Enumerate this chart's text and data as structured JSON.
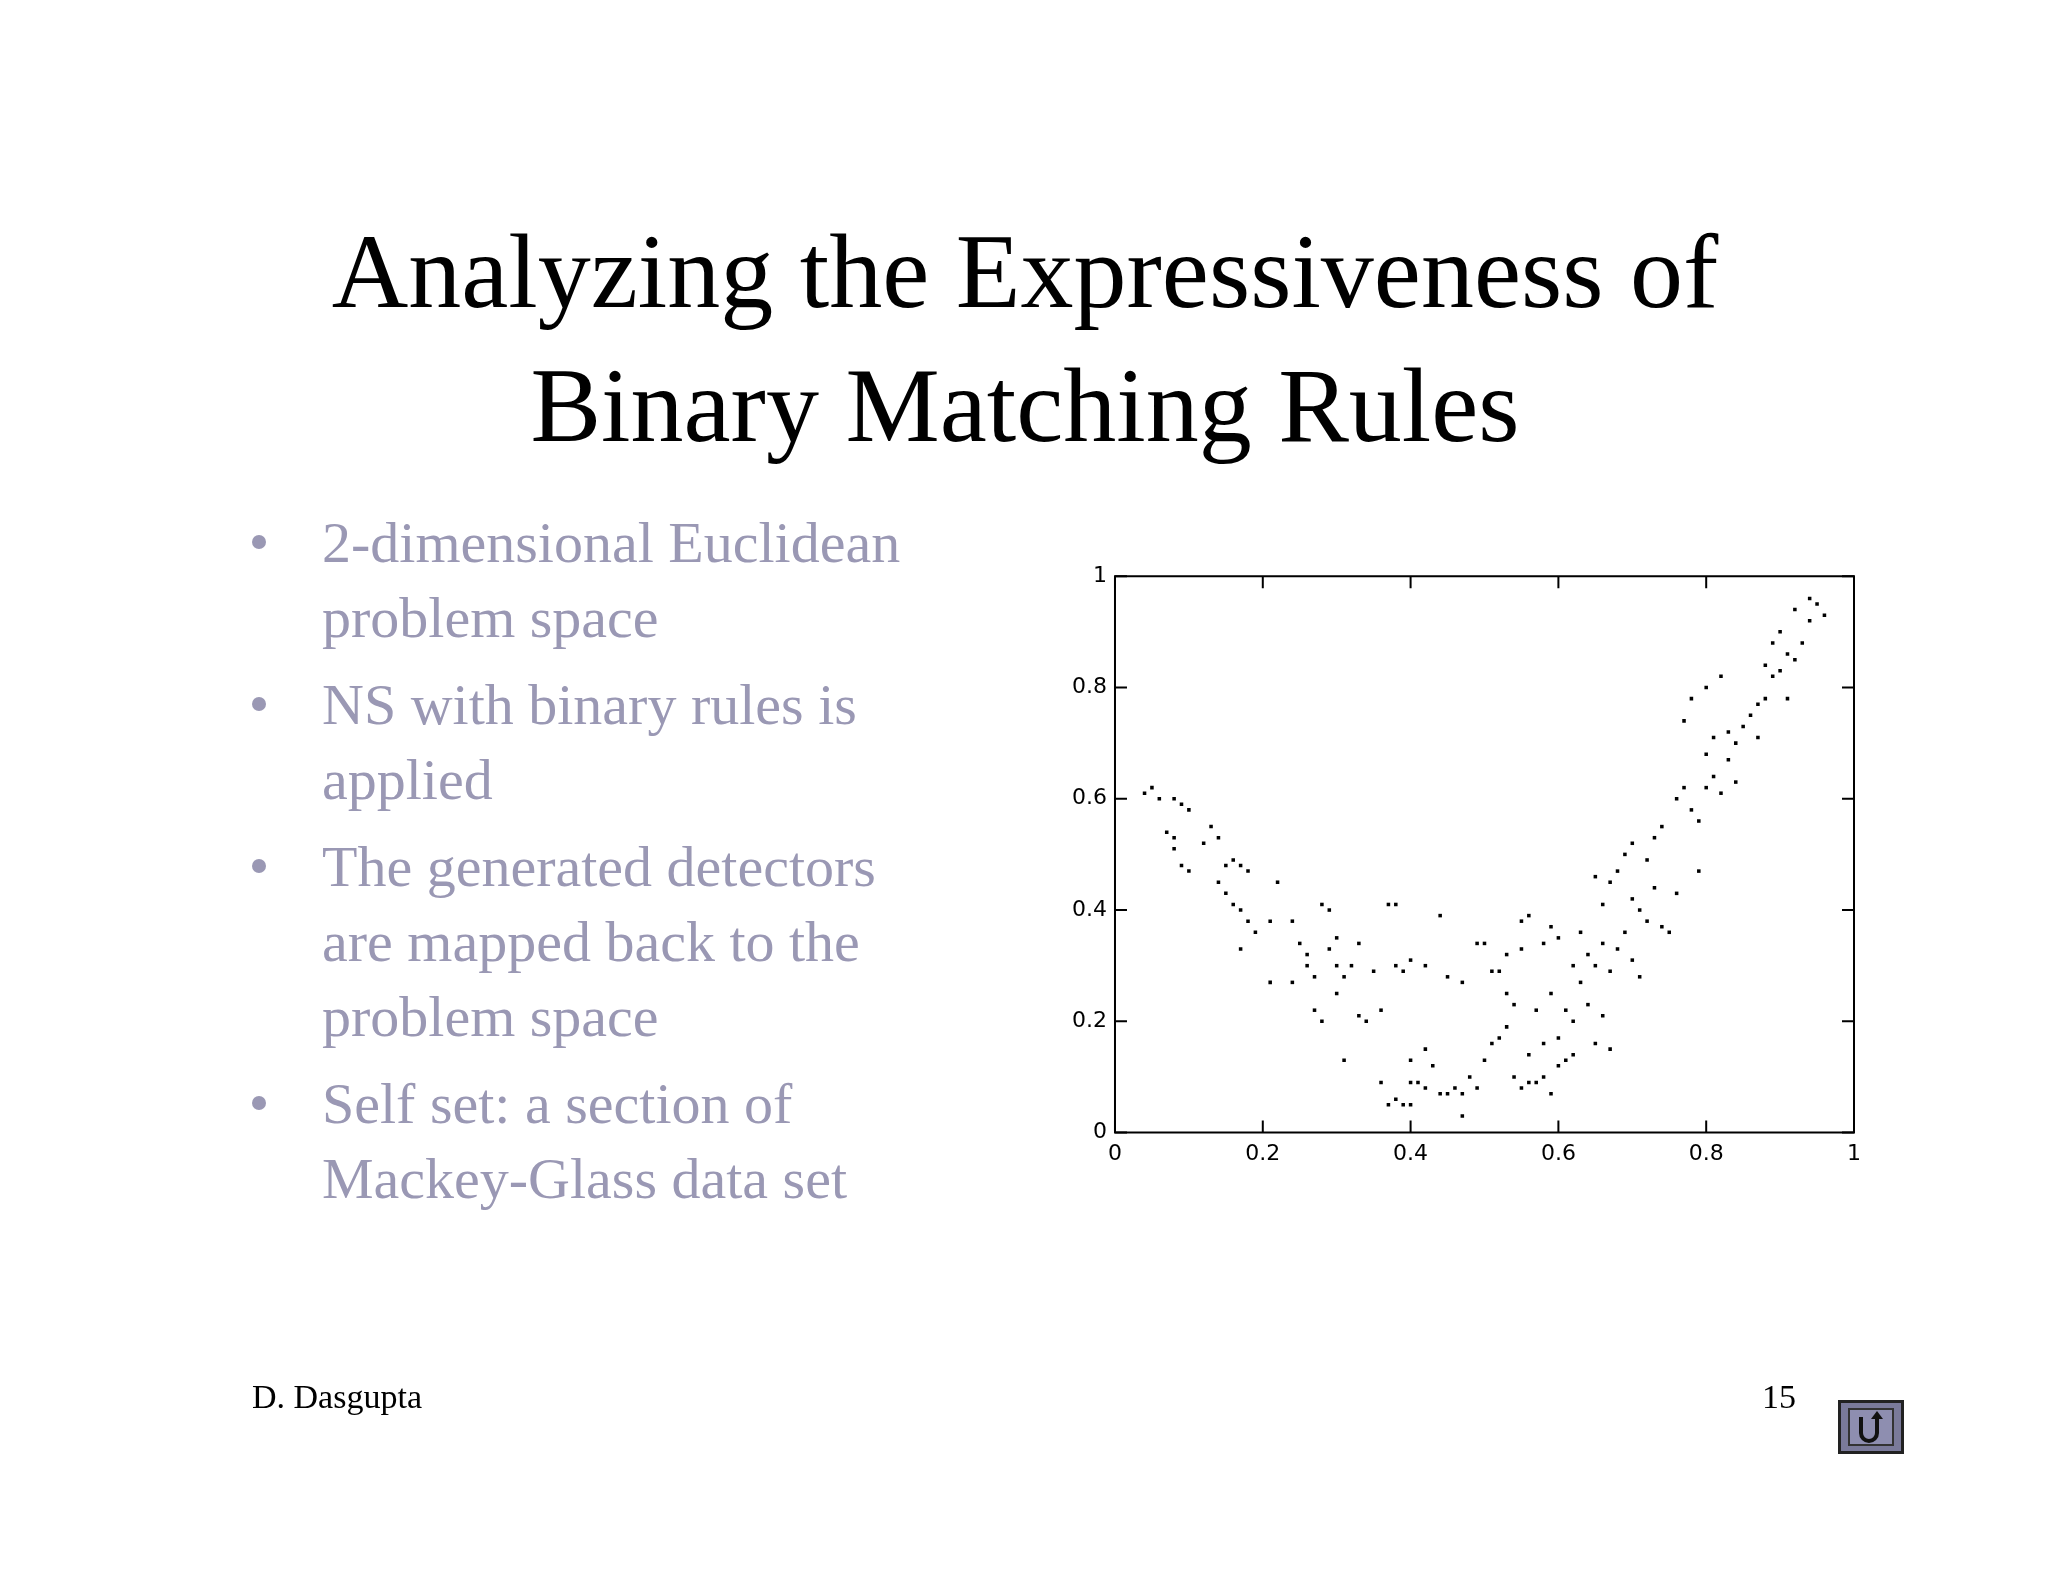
{
  "chart_data": {
    "type": "scatter",
    "title": "Analyzing the Expressiveness of Binary Matching Rules",
    "annotations": [
      "2-dimensional Euclidean problem space",
      "NS with binary rules is applied",
      "The generated detectors are mapped back to the problem space",
      "Self set: a section of Mackey-Glass data set",
      "D. Dasgupta",
      "15"
    ],
    "xlim": [
      0,
      1
    ],
    "ylim": [
      0,
      1
    ],
    "xticks": [
      0,
      0.2,
      0.4,
      0.6,
      0.8,
      1
    ],
    "yticks": [
      0,
      0.2,
      0.4,
      0.6,
      0.8,
      1
    ],
    "marker": "square",
    "series": [
      {
        "color": "#000000",
        "x": [
          0.04,
          0.05,
          0.06,
          0.08,
          0.09,
          0.1,
          0.07,
          0.08,
          0.08,
          0.09,
          0.1,
          0.12,
          0.13,
          0.14,
          0.15,
          0.16,
          0.17,
          0.18,
          0.14,
          0.15,
          0.16,
          0.17,
          0.18,
          0.19,
          0.21,
          0.22,
          0.24,
          0.17,
          0.21,
          0.24,
          0.25,
          0.26,
          0.26,
          0.27,
          0.27,
          0.28,
          0.28,
          0.29,
          0.29,
          0.3,
          0.3,
          0.3,
          0.31,
          0.31,
          0.32,
          0.33,
          0.34,
          0.33,
          0.35,
          0.36,
          0.37,
          0.38,
          0.38,
          0.39,
          0.4,
          0.42,
          0.44,
          0.45,
          0.47,
          0.49,
          0.5,
          0.51,
          0.52,
          0.53,
          0.55,
          0.53,
          0.54,
          0.36,
          0.37,
          0.38,
          0.39,
          0.4,
          0.4,
          0.4,
          0.41,
          0.42,
          0.42,
          0.43,
          0.44,
          0.45,
          0.46,
          0.47,
          0.47,
          0.48,
          0.49,
          0.5,
          0.51,
          0.52,
          0.53,
          0.54,
          0.55,
          0.56,
          0.57,
          0.58,
          0.59,
          0.6,
          0.61,
          0.62,
          0.6,
          0.58,
          0.56,
          0.57,
          0.59,
          0.61,
          0.62,
          0.63,
          0.64,
          0.65,
          0.66,
          0.67,
          0.55,
          0.56,
          0.58,
          0.59,
          0.6,
          0.62,
          0.63,
          0.64,
          0.65,
          0.66,
          0.67,
          0.68,
          0.69,
          0.7,
          0.71,
          0.71,
          0.7,
          0.68,
          0.67,
          0.66,
          0.65,
          0.69,
          0.7,
          0.72,
          0.73,
          0.72,
          0.74,
          0.75,
          0.76,
          0.73,
          0.74,
          0.76,
          0.77,
          0.78,
          0.79,
          0.8,
          0.81,
          0.82,
          0.8,
          0.81,
          0.83,
          0.84,
          0.85,
          0.86,
          0.84,
          0.79,
          0.77,
          0.78,
          0.8,
          0.82,
          0.83,
          0.87,
          0.88,
          0.89,
          0.9,
          0.91,
          0.92,
          0.93,
          0.94,
          0.95,
          0.96,
          0.94,
          0.92,
          0.9,
          0.89,
          0.91,
          0.87,
          0.88
        ],
        "values": [
          0.61,
          0.62,
          0.6,
          0.6,
          0.59,
          0.58,
          0.54,
          0.53,
          0.51,
          0.48,
          0.47,
          0.52,
          0.55,
          0.53,
          0.48,
          0.49,
          0.48,
          0.47,
          0.45,
          0.43,
          0.41,
          0.4,
          0.38,
          0.36,
          0.38,
          0.45,
          0.38,
          0.33,
          0.27,
          0.27,
          0.34,
          0.32,
          0.3,
          0.28,
          0.22,
          0.2,
          0.41,
          0.4,
          0.33,
          0.35,
          0.25,
          0.3,
          0.28,
          0.13,
          0.3,
          0.21,
          0.2,
          0.34,
          0.29,
          0.22,
          0.41,
          0.41,
          0.3,
          0.29,
          0.31,
          0.3,
          0.39,
          0.28,
          0.27,
          0.34,
          0.34,
          0.29,
          0.29,
          0.32,
          0.33,
          0.25,
          0.23,
          0.09,
          0.05,
          0.06,
          0.05,
          0.05,
          0.09,
          0.13,
          0.09,
          0.15,
          0.08,
          0.12,
          0.07,
          0.07,
          0.08,
          0.03,
          0.07,
          0.1,
          0.08,
          0.13,
          0.16,
          0.17,
          0.19,
          0.1,
          0.08,
          0.09,
          0.09,
          0.1,
          0.07,
          0.12,
          0.13,
          0.14,
          0.17,
          0.16,
          0.14,
          0.22,
          0.25,
          0.22,
          0.2,
          0.27,
          0.23,
          0.16,
          0.21,
          0.15,
          0.38,
          0.39,
          0.34,
          0.37,
          0.35,
          0.3,
          0.36,
          0.32,
          0.3,
          0.34,
          0.29,
          0.33,
          0.36,
          0.31,
          0.28,
          0.4,
          0.42,
          0.47,
          0.45,
          0.41,
          0.46,
          0.5,
          0.52,
          0.49,
          0.44,
          0.38,
          0.37,
          0.36,
          0.43,
          0.53,
          0.55,
          0.6,
          0.62,
          0.58,
          0.56,
          0.62,
          0.64,
          0.61,
          0.68,
          0.71,
          0.67,
          0.7,
          0.73,
          0.75,
          0.63,
          0.47,
          0.74,
          0.78,
          0.8,
          0.82,
          0.72,
          0.77,
          0.78,
          0.82,
          0.83,
          0.86,
          0.85,
          0.88,
          0.92,
          0.95,
          0.93,
          0.96,
          0.94,
          0.9,
          0.88,
          0.78,
          0.71,
          0.84
        ]
      }
    ]
  }
}
